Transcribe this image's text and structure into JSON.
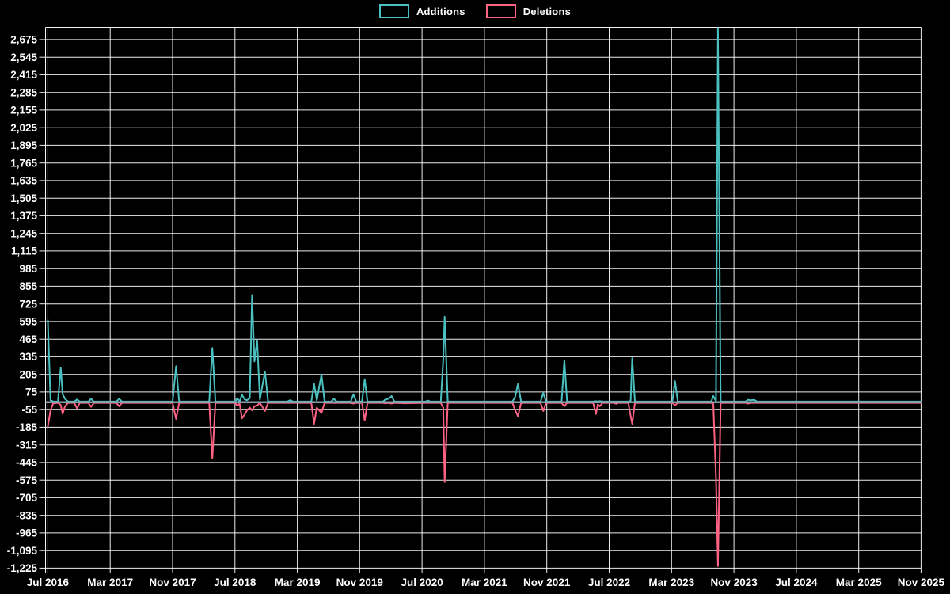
{
  "legend": {
    "items": [
      {
        "label": "Additions",
        "color": "#4bc0c0"
      },
      {
        "label": "Deletions",
        "color": "#ff6384"
      }
    ]
  },
  "colors": {
    "background": "#000000",
    "grid": "#ffffff",
    "text": "#ffffff",
    "additions": "#4bc0c0",
    "deletions": "#ff6384",
    "baseline": "#8ba4b4"
  },
  "chart_data": {
    "type": "line",
    "title": "",
    "xlabel": "",
    "ylabel": "",
    "legend_position": "top-center",
    "grid": true,
    "x_tick_labels": [
      "Jul 2016",
      "Mar 2017",
      "Nov 2017",
      "Jul 2018",
      "Mar 2019",
      "Nov 2019",
      "Jul 2020",
      "Mar 2021",
      "Nov 2021",
      "Jul 2022",
      "Mar 2023",
      "Nov 2023",
      "Jul 2024",
      "Mar 2025",
      "Nov 2025"
    ],
    "x_months_per_tick": 8,
    "x_unit": "months since Jul 2016",
    "x_range_months": [
      0,
      112
    ],
    "y_axis": {
      "min": -1225,
      "max": 2675,
      "step": 130,
      "format": "thousands-comma"
    },
    "series_names": [
      "additions",
      "deletions"
    ],
    "columns": [
      "months_since_jul_2016",
      "additions",
      "deletions"
    ],
    "note_additions_peak_clipped_at_plot_top": true,
    "rows": [
      [
        0,
        605,
        -180
      ],
      [
        0.35,
        15,
        -60
      ],
      [
        0.7,
        5,
        -8
      ],
      [
        1.3,
        5,
        -5
      ],
      [
        1.65,
        255,
        -20
      ],
      [
        1.9,
        60,
        -85
      ],
      [
        2.2,
        25,
        -30
      ],
      [
        2.6,
        5,
        -5
      ],
      [
        3.4,
        5,
        -5
      ],
      [
        3.75,
        20,
        -45
      ],
      [
        4.1,
        5,
        -5
      ],
      [
        5.2,
        5,
        -5
      ],
      [
        5.55,
        25,
        -35
      ],
      [
        5.9,
        5,
        -5
      ],
      [
        8.8,
        5,
        -5
      ],
      [
        9.15,
        25,
        -30
      ],
      [
        9.5,
        5,
        -5
      ],
      [
        16.0,
        5,
        -5
      ],
      [
        16.45,
        265,
        -125
      ],
      [
        16.85,
        5,
        -5
      ],
      [
        20.7,
        5,
        -5
      ],
      [
        21.1,
        400,
        -415
      ],
      [
        21.5,
        5,
        -5
      ],
      [
        24.0,
        5,
        -5
      ],
      [
        24.3,
        30,
        -25
      ],
      [
        24.6,
        5,
        -10
      ],
      [
        24.9,
        55,
        -120
      ],
      [
        25.25,
        20,
        -90
      ],
      [
        25.55,
        15,
        -60
      ],
      [
        25.9,
        30,
        -40
      ],
      [
        26.2,
        790,
        -60
      ],
      [
        26.5,
        300,
        -30
      ],
      [
        26.85,
        455,
        -25
      ],
      [
        27.2,
        20,
        -5
      ],
      [
        27.85,
        225,
        -65
      ],
      [
        28.25,
        5,
        -5
      ],
      [
        30.7,
        5,
        -5
      ],
      [
        31.1,
        15,
        -5
      ],
      [
        31.45,
        5,
        -5
      ],
      [
        33.8,
        5,
        -5
      ],
      [
        34.15,
        135,
        -160
      ],
      [
        34.5,
        15,
        -40
      ],
      [
        35.1,
        205,
        -80
      ],
      [
        35.5,
        5,
        -5
      ],
      [
        36.35,
        5,
        -5
      ],
      [
        36.7,
        25,
        -5
      ],
      [
        37.05,
        5,
        -5
      ],
      [
        38.85,
        5,
        -5
      ],
      [
        39.2,
        58,
        -10
      ],
      [
        39.55,
        5,
        -5
      ],
      [
        40.3,
        5,
        -5
      ],
      [
        40.65,
        170,
        -135
      ],
      [
        41.0,
        5,
        -5
      ],
      [
        43.0,
        5,
        -5
      ],
      [
        43.3,
        20,
        -8
      ],
      [
        43.7,
        25,
        -5
      ],
      [
        44.1,
        45,
        -10
      ],
      [
        44.45,
        5,
        -5
      ],
      [
        45.8,
        5,
        -8
      ],
      [
        48.4,
        5,
        -5
      ],
      [
        48.75,
        12,
        -5
      ],
      [
        49.1,
        5,
        -5
      ],
      [
        50.4,
        5,
        -5
      ],
      [
        50.72,
        310,
        -40
      ],
      [
        50.9,
        630,
        -590
      ],
      [
        51.3,
        5,
        -5
      ],
      [
        59.6,
        5,
        -5
      ],
      [
        59.95,
        40,
        -60
      ],
      [
        60.3,
        135,
        -105
      ],
      [
        60.7,
        5,
        -5
      ],
      [
        63.2,
        5,
        -5
      ],
      [
        63.55,
        68,
        -65
      ],
      [
        63.9,
        5,
        -5
      ],
      [
        65.9,
        5,
        -5
      ],
      [
        66.25,
        310,
        -30
      ],
      [
        66.6,
        5,
        -5
      ],
      [
        69.95,
        5,
        -5
      ],
      [
        70.3,
        8,
        -87
      ],
      [
        70.55,
        5,
        -15
      ],
      [
        70.8,
        8,
        -30
      ],
      [
        71.15,
        5,
        -5
      ],
      [
        72.6,
        5,
        -5
      ],
      [
        72.9,
        5,
        -12
      ],
      [
        73.2,
        5,
        -5
      ],
      [
        74.45,
        5,
        -5
      ],
      [
        74.75,
        10,
        -100
      ],
      [
        74.95,
        325,
        -160
      ],
      [
        75.3,
        5,
        -5
      ],
      [
        80.1,
        5,
        -5
      ],
      [
        80.45,
        155,
        -22
      ],
      [
        80.8,
        5,
        -5
      ],
      [
        85.1,
        5,
        -5
      ],
      [
        85.35,
        45,
        -10
      ],
      [
        85.7,
        10,
        -555
      ],
      [
        85.95,
        2760,
        -1210
      ],
      [
        86.3,
        5,
        -5
      ],
      [
        89.5,
        5,
        -5
      ],
      [
        89.8,
        18,
        -10
      ],
      [
        90.2,
        15,
        -5
      ],
      [
        90.6,
        18,
        -5
      ],
      [
        90.95,
        5,
        -5
      ],
      [
        112.0,
        5,
        -5
      ]
    ]
  }
}
